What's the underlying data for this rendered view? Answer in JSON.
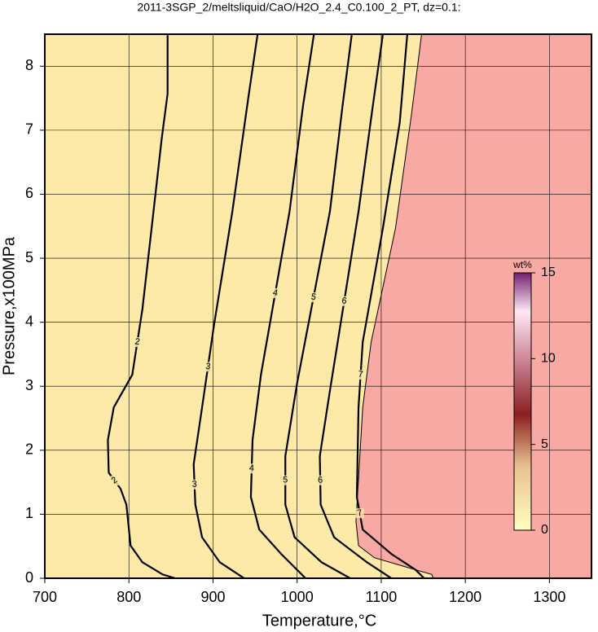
{
  "chart_data": {
    "type": "contour",
    "title": "2011-3SGP_2/meltsliquid/CaO/H2O_2.4_C0.100_2_PT, dz=0.1:",
    "xlabel": "Temperature,°C",
    "ylabel": "Pressure,x100MPa",
    "xlim": [
      700,
      1350
    ],
    "ylim": [
      0,
      8.5
    ],
    "xticks": [
      700,
      800,
      900,
      1000,
      1100,
      1200,
      1300
    ],
    "yticks": [
      0,
      1,
      2,
      3,
      4,
      5,
      6,
      7,
      8
    ],
    "grid": true,
    "background": "#fde9a8",
    "melt_color": "#f9a9a4",
    "series": [
      {
        "name": "2",
        "color": "#000000",
        "x": [
          846,
          846,
          839,
          827,
          816,
          804,
          782,
          775,
          776,
          790,
          797,
          802,
          816,
          840,
          855
        ],
        "y": [
          8.5,
          7.57,
          6.87,
          5.47,
          4.2,
          3.18,
          2.67,
          2.16,
          1.65,
          1.4,
          1.15,
          0.51,
          0.25,
          0.06,
          0
        ]
      },
      {
        "name": "3",
        "color": "#000000",
        "x": [
          953,
          942,
          923,
          901,
          887,
          877,
          879,
          887,
          908,
          937
        ],
        "y": [
          8.5,
          7.51,
          5.73,
          3.94,
          2.67,
          1.78,
          1.15,
          0.64,
          0.25,
          0
        ]
      },
      {
        "name": "4",
        "color": "#000000",
        "x": [
          1020,
          1007,
          991,
          957,
          947,
          945,
          955,
          981,
          1010
        ],
        "y": [
          8.5,
          7.38,
          5.73,
          3.18,
          2.16,
          1.27,
          0.76,
          0.38,
          0
        ]
      },
      {
        "name": "5",
        "color": "#000000",
        "x": [
          1065,
          1054,
          1039,
          1000,
          986,
          986,
          997,
          1029,
          1063
        ],
        "y": [
          8.5,
          7.38,
          5.73,
          3.05,
          1.91,
          1.15,
          0.64,
          0.25,
          0
        ]
      },
      {
        "name": "6",
        "color": "#000000",
        "x": [
          1102,
          1090,
          1073,
          1039,
          1027,
          1028,
          1044,
          1083,
          1112
        ],
        "y": [
          8.5,
          7.38,
          5.73,
          2.93,
          1.91,
          1.15,
          0.64,
          0.25,
          0
        ]
      },
      {
        "name": "7",
        "color": "#000000",
        "x": [
          1131,
          1122,
          1102,
          1078,
          1073,
          1071,
          1078,
          1112,
          1141,
          1151
        ],
        "y": [
          8.5,
          7.12,
          5.47,
          3.69,
          2.67,
          1.27,
          0.76,
          0.38,
          0.13,
          0
        ]
      }
    ],
    "boundary": {
      "x": [
        1148,
        1136,
        1117,
        1088,
        1078,
        1070,
        1073,
        1092,
        1131,
        1160,
        1162
      ],
      "y": [
        8.5,
        7.25,
        5.47,
        3.69,
        2.67,
        0.89,
        0.51,
        0.32,
        0.17,
        0.06,
        0
      ]
    },
    "colorbar": {
      "label": "wt%",
      "lim": [
        0,
        15
      ],
      "ticks": [
        0,
        5,
        10,
        15
      ]
    }
  }
}
